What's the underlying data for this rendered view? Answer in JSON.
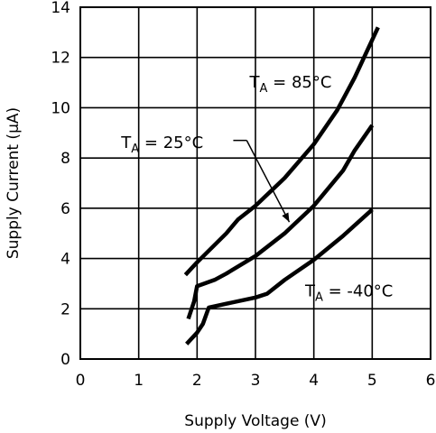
{
  "chart_data": {
    "type": "line",
    "xlabel": "Supply Voltage (V)",
    "ylabel": "Supply Current (μA)",
    "xlim": [
      0,
      6
    ],
    "ylim": [
      0,
      14
    ],
    "xticks": [
      0,
      1,
      2,
      3,
      4,
      5,
      6
    ],
    "yticks": [
      0,
      2,
      4,
      6,
      8,
      10,
      12,
      14
    ],
    "grid": true,
    "series": [
      {
        "name": "TA = 85°C",
        "x": [
          1.8,
          2.0,
          2.5,
          2.7,
          3.0,
          3.5,
          4.0,
          4.4,
          4.7,
          5.1
        ],
        "y": [
          3.35,
          3.85,
          5.0,
          5.55,
          6.1,
          7.2,
          8.55,
          9.9,
          11.2,
          13.2
        ]
      },
      {
        "name": "TA = 25°C",
        "x": [
          1.85,
          1.95,
          2.0,
          2.3,
          2.5,
          3.0,
          3.5,
          4.0,
          4.5,
          4.7,
          5.0
        ],
        "y": [
          1.6,
          2.3,
          2.9,
          3.15,
          3.4,
          4.1,
          5.0,
          6.1,
          7.5,
          8.3,
          9.3
        ]
      },
      {
        "name": "TA = -40°C",
        "x": [
          1.82,
          2.0,
          2.1,
          2.2,
          2.5,
          3.0,
          3.2,
          3.5,
          4.0,
          4.5,
          5.0
        ],
        "y": [
          0.6,
          1.05,
          1.4,
          2.05,
          2.2,
          2.45,
          2.6,
          3.15,
          3.95,
          4.9,
          5.95
        ]
      }
    ],
    "annotations": [
      {
        "series": "TA = 85°C",
        "main": "T",
        "sub": "A",
        "rest": " = 85°C"
      },
      {
        "series": "TA = 25°C",
        "main": "T",
        "sub": "A",
        "rest": " = 25°C"
      },
      {
        "series": "TA = -40°C",
        "main": "T",
        "sub": "A",
        "rest": " = -40°C"
      }
    ]
  }
}
